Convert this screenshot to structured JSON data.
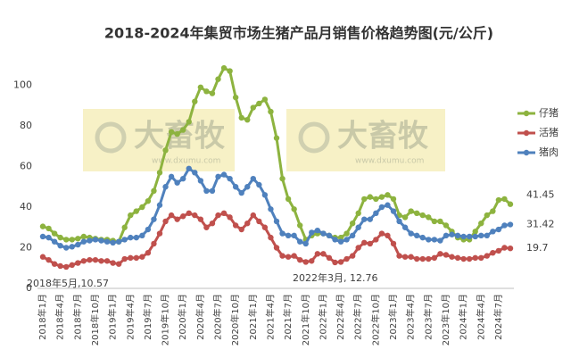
{
  "chart_data": {
    "type": "line",
    "title": "2018-2024年集贸市场生猪产品月销售价格趋势图(元/公斤)",
    "watermark": {
      "text": "大畜牧",
      "url": "www.dxumu.com"
    },
    "categories": [
      "2018年1月",
      null,
      null,
      "2018年4月",
      null,
      null,
      "2018年7月",
      null,
      null,
      "2018年10月",
      null,
      null,
      "2019年1月",
      null,
      null,
      "2019年4月",
      null,
      null,
      "2019年7月",
      null,
      null,
      "2019年10月",
      null,
      null,
      "2020年1月",
      null,
      null,
      "2020年4月",
      null,
      null,
      "2020年7月",
      null,
      null,
      "2020年10月",
      null,
      null,
      "2021年1月",
      null,
      null,
      "2021年4月",
      null,
      null,
      "2021年7月",
      null,
      null,
      "2021年10月",
      null,
      null,
      "2022年1月",
      null,
      null,
      "2022年4月",
      null,
      null,
      "2022年7月",
      null,
      null,
      "2022年10月",
      null,
      null,
      "2023年1月",
      null,
      null,
      "2023年4月",
      null,
      null,
      "2023年7月",
      null,
      null,
      "2023年10月",
      null,
      null,
      "2024年1月",
      null,
      null,
      "2024年4月",
      null,
      null,
      "2024年7月",
      null,
      null
    ],
    "series": [
      {
        "name": "仔猪",
        "color": "#8db33f",
        "values": [
          30.5,
          29.5,
          27,
          25,
          24,
          24,
          24.5,
          25.5,
          25,
          24.5,
          24,
          24,
          23.5,
          23,
          30,
          36,
          38,
          40,
          43,
          48,
          57,
          68,
          77,
          76,
          78,
          82,
          92,
          99,
          97,
          96,
          103,
          108.5,
          107,
          94,
          84,
          83,
          89,
          91,
          93,
          87,
          74,
          54,
          44,
          39,
          31,
          24,
          26,
          27,
          27,
          26,
          25,
          25,
          27,
          32,
          37,
          44,
          45,
          44,
          45,
          46,
          44,
          36,
          35,
          38,
          37,
          36,
          35,
          33,
          33,
          31,
          28,
          25,
          24,
          24,
          28,
          32,
          36,
          38,
          43.5,
          44,
          41.45
        ]
      },
      {
        "name": "活猪",
        "color": "#c0504d",
        "values": [
          15.5,
          14,
          12,
          11,
          10.57,
          11.5,
          12.5,
          13.5,
          14,
          14,
          13.5,
          13.5,
          12.5,
          12,
          14.5,
          15,
          15,
          15.5,
          17.5,
          22,
          27,
          33,
          36,
          34,
          35.5,
          37,
          36,
          34,
          30,
          32,
          36,
          37,
          35,
          31,
          29,
          32,
          36,
          33,
          30,
          25,
          20,
          16,
          15.5,
          16,
          14,
          13,
          13.5,
          17,
          17,
          15,
          12.76,
          13,
          14.5,
          16,
          20,
          22.5,
          22,
          24,
          27,
          26,
          22,
          16,
          15.5,
          15.5,
          14.5,
          14.5,
          14.5,
          15,
          17,
          16.5,
          15.5,
          15,
          14.5,
          14.5,
          15,
          15,
          16,
          17.5,
          18.5,
          20,
          19.7
        ]
      },
      {
        "name": "猪肉",
        "color": "#4f81bd",
        "values": [
          25.5,
          25,
          23,
          21,
          20,
          20.5,
          21.5,
          23,
          23.5,
          24,
          23.5,
          23,
          22.5,
          23,
          24,
          25,
          25,
          26,
          29,
          34,
          41,
          50,
          55,
          52,
          54,
          59,
          57,
          53,
          48,
          48,
          55,
          56,
          54,
          50,
          47,
          50,
          54,
          51,
          46,
          39,
          33,
          27,
          26,
          26,
          23,
          22,
          27.5,
          28.5,
          27,
          26,
          24,
          23,
          24,
          26,
          30,
          34,
          34,
          37,
          40,
          41,
          38,
          33,
          30,
          27,
          26,
          25,
          24,
          24,
          23.5,
          26,
          26.5,
          26,
          25.5,
          25.5,
          25.5,
          26,
          26,
          28,
          29,
          31,
          31.42
        ]
      }
    ],
    "annotations": [
      "2018年5月,10.57",
      "2022年3月, 12.76"
    ],
    "ylim": [
      0,
      120
    ],
    "yticks": [
      0,
      20,
      40,
      60,
      80,
      100
    ],
    "grid": false,
    "legend": "right"
  }
}
